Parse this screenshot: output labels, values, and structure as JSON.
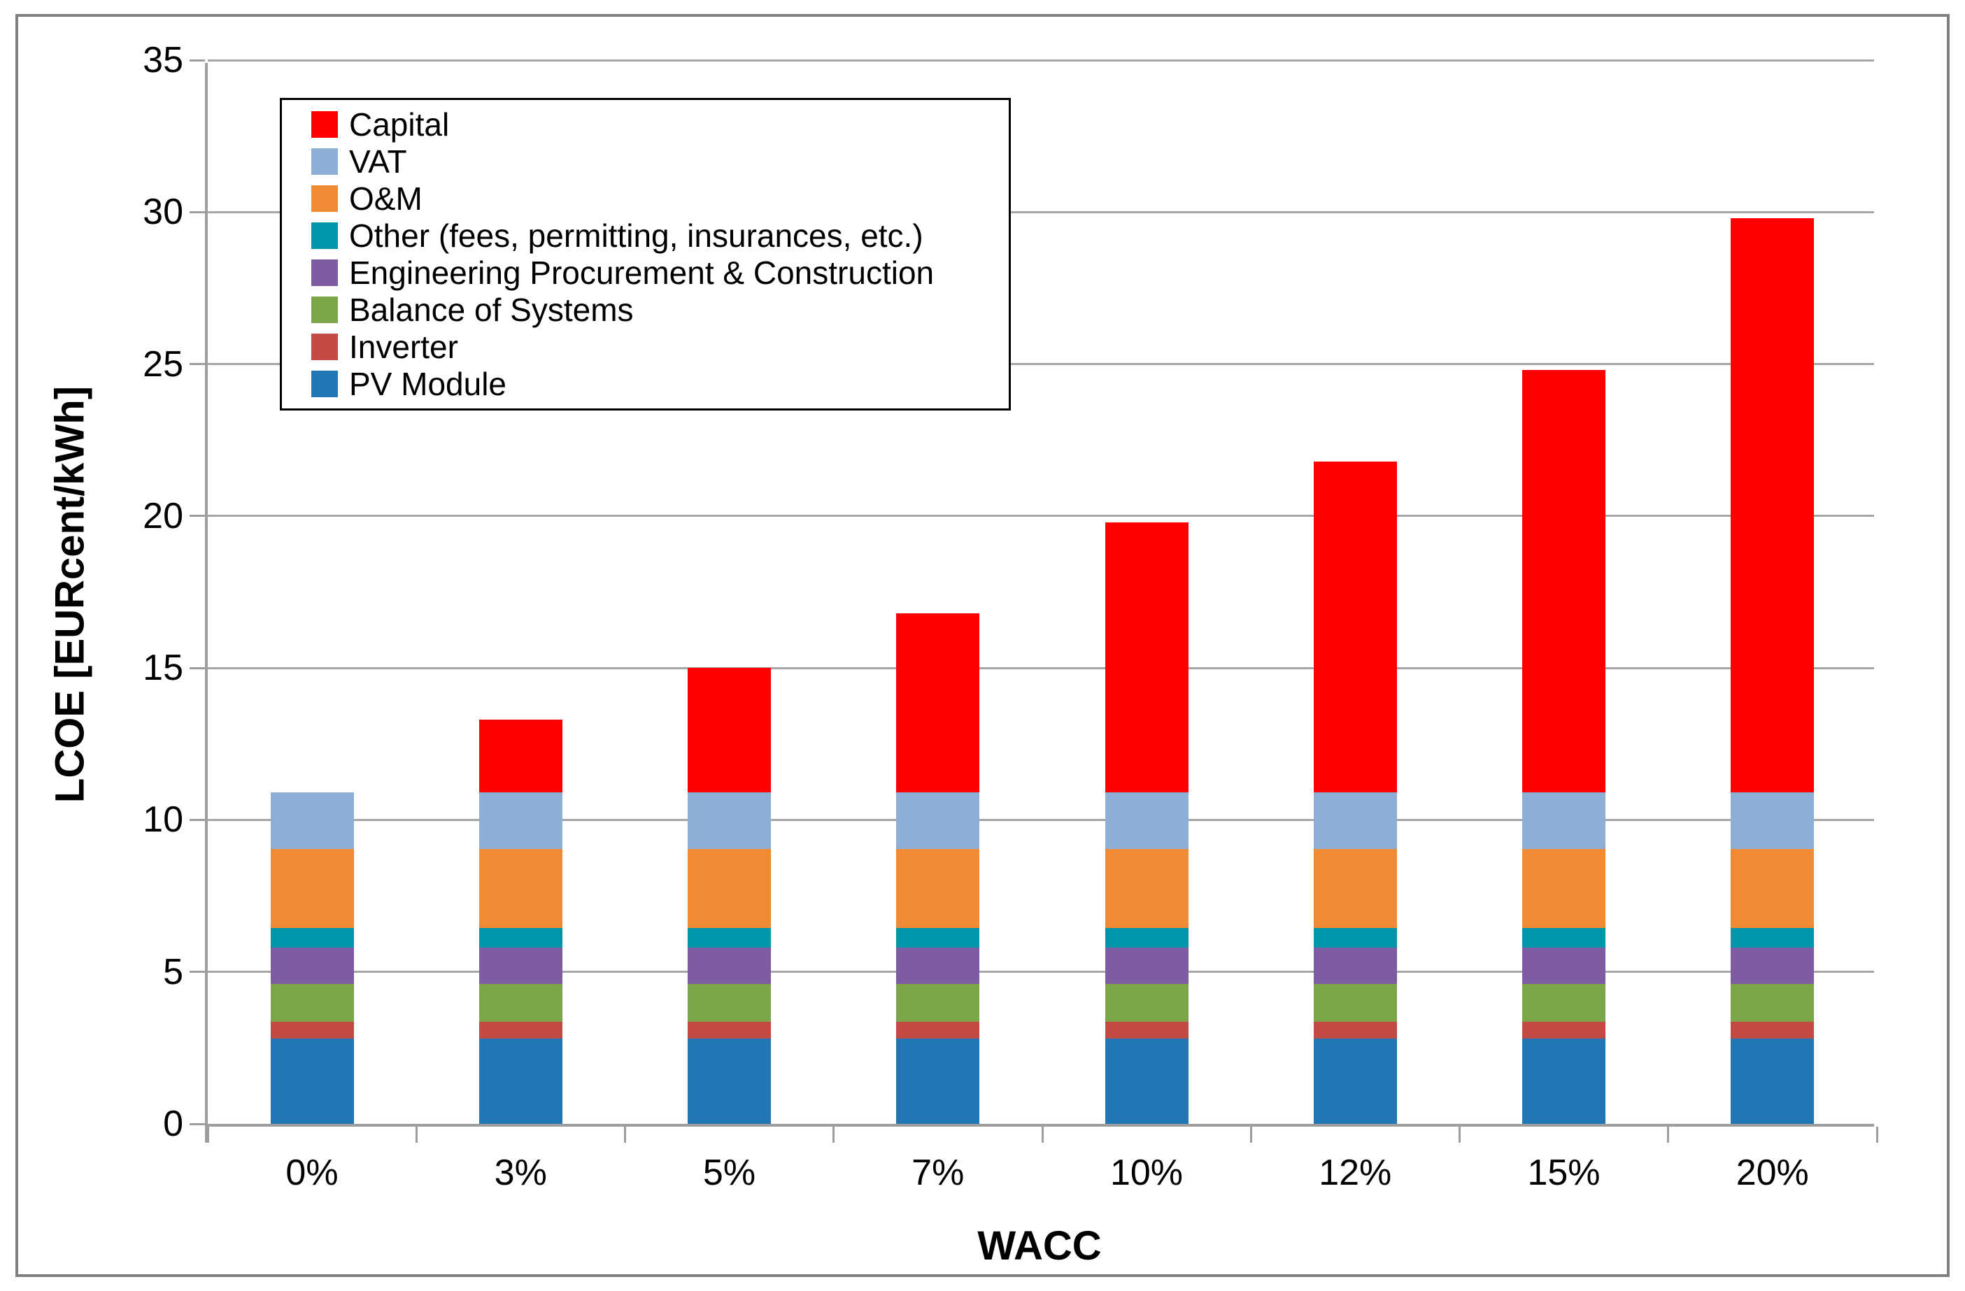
{
  "chart_data": {
    "type": "bar",
    "stacked": true,
    "title": "",
    "xlabel": "WACC",
    "ylabel": "LCOE [EURcent/kWh]",
    "ylim": [
      0,
      35
    ],
    "ytick_step": 5,
    "ytick_labels": [
      "0",
      "5",
      "10",
      "15",
      "20",
      "25",
      "30",
      "35"
    ],
    "grid": true,
    "bar_width_fraction": 0.4,
    "categories": [
      "0%",
      "3%",
      "5%",
      "7%",
      "10%",
      "12%",
      "15%",
      "20%"
    ],
    "series": [
      {
        "name": "PV Module",
        "color": "#2276B3",
        "values": [
          2.8,
          2.8,
          2.8,
          2.8,
          2.8,
          2.8,
          2.8,
          2.8
        ]
      },
      {
        "name": "Inverter",
        "color": "#C24944",
        "values": [
          0.55,
          0.55,
          0.55,
          0.55,
          0.55,
          0.55,
          0.55,
          0.55
        ]
      },
      {
        "name": "Balance of Systems",
        "color": "#7DA64A",
        "values": [
          1.25,
          1.25,
          1.25,
          1.25,
          1.25,
          1.25,
          1.25,
          1.25
        ]
      },
      {
        "name": "Engineering Procurement & Construction",
        "color": "#7D5CA2",
        "values": [
          1.2,
          1.2,
          1.2,
          1.2,
          1.2,
          1.2,
          1.2,
          1.2
        ]
      },
      {
        "name": "Other (fees, permitting, insurances, etc.)",
        "color": "#0096A9",
        "values": [
          0.65,
          0.65,
          0.65,
          0.65,
          0.65,
          0.65,
          0.65,
          0.65
        ]
      },
      {
        "name": "O&M",
        "color": "#F18A34",
        "values": [
          2.6,
          2.6,
          2.6,
          2.6,
          2.6,
          2.6,
          2.6,
          2.6
        ]
      },
      {
        "name": "VAT",
        "color": "#8FAED6",
        "values": [
          1.85,
          1.85,
          1.85,
          1.85,
          1.85,
          1.85,
          1.85,
          1.85
        ]
      },
      {
        "name": "Capital",
        "color": "#FF0000",
        "values": [
          0,
          2.4,
          4.1,
          5.9,
          8.9,
          10.9,
          13.9,
          18.9
        ]
      }
    ],
    "bar_totals": [
      10.9,
      13.3,
      15.0,
      16.8,
      19.8,
      21.8,
      24.8,
      29.8
    ],
    "legend": {
      "position": "top-left-inside",
      "order_top_to_bottom": [
        "Capital",
        "VAT",
        "O&M",
        "Other (fees, permitting, insurances, etc.)",
        "Engineering Procurement & Construction",
        "Balance of Systems",
        "Inverter",
        "PV Module"
      ]
    }
  }
}
